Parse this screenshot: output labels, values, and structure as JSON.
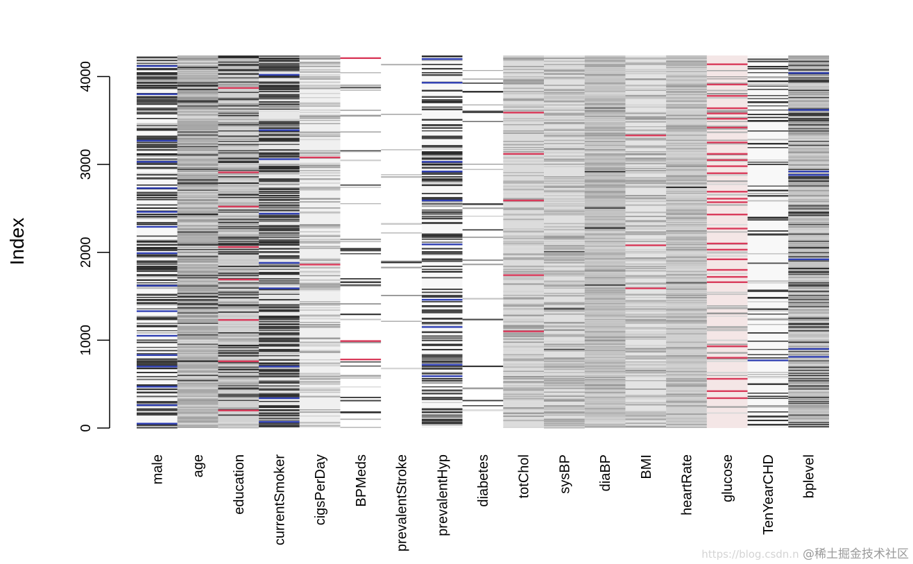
{
  "chart_data": {
    "type": "heatmap",
    "title": "",
    "xlabel": "",
    "ylabel": "Index",
    "ylim": [
      0,
      4240
    ],
    "y_ticks": [
      0,
      1000,
      2000,
      3000,
      4000
    ],
    "y_tick_labels": [
      "0",
      "1000",
      "2000",
      "3000",
      "4000"
    ],
    "columns": [
      {
        "name": "male",
        "base": "#f7f7f7",
        "dark_fraction": 0.44,
        "mid_fraction": 0.05,
        "missing_color": "#2f3fb3",
        "missing_rows": [
          50,
          260,
          470,
          700,
          830,
          1050,
          1330,
          1620,
          1990,
          2290,
          2460,
          2730,
          3030,
          3270,
          3800,
          4120
        ]
      },
      {
        "name": "age",
        "base": "#a8a8a8",
        "dark_fraction": 0.1,
        "mid_fraction": 0.6,
        "missing_color": "",
        "missing_rows": []
      },
      {
        "name": "education",
        "base": "#d2d2d2",
        "dark_fraction": 0.2,
        "mid_fraction": 0.4,
        "missing_color": "#d93a5a",
        "missing_rows": [
          200,
          760,
          1230,
          1690,
          2060,
          2520,
          2910,
          3870
        ]
      },
      {
        "name": "currentSmoker",
        "base": "#e8e8e8",
        "dark_fraction": 0.5,
        "mid_fraction": 0.05,
        "missing_color": "#2f3fb3",
        "missing_rows": [
          70,
          340,
          700,
          1590,
          1880,
          2440,
          3060,
          3390,
          4020
        ]
      },
      {
        "name": "cigsPerDay",
        "base": "#f0f0f0",
        "dark_fraction": 0.0,
        "mid_fraction": 0.3,
        "missing_color": "#d93a5a",
        "missing_rows": [
          1860,
          3080
        ]
      },
      {
        "name": "BPMeds",
        "base": "#ffffff",
        "dark_fraction": 0.03,
        "mid_fraction": 0.05,
        "missing_color": "#d93a5a",
        "missing_rows": [
          780,
          990,
          4210
        ]
      },
      {
        "name": "prevalentStroke",
        "base": "#ffffff",
        "dark_fraction": 0.004,
        "mid_fraction": 0.03,
        "missing_color": "",
        "missing_rows": []
      },
      {
        "name": "prevalentHyp",
        "base": "#f7f7f7",
        "dark_fraction": 0.32,
        "mid_fraction": 0.05,
        "missing_color": "#2f3fb3",
        "missing_rows": [
          590,
          720,
          1150,
          1460,
          2090,
          2590,
          2920,
          3030,
          3930,
          4200
        ]
      },
      {
        "name": "diabetes",
        "base": "#ffffff",
        "dark_fraction": 0.03,
        "mid_fraction": 0.02,
        "missing_color": "",
        "missing_rows": []
      },
      {
        "name": "totChol",
        "base": "#dcdcdc",
        "dark_fraction": 0.0,
        "mid_fraction": 0.4,
        "missing_color": "#d93a5a",
        "missing_rows": [
          1100,
          1740,
          2590,
          3120,
          3590
        ]
      },
      {
        "name": "sysBP",
        "base": "#e0e0e0",
        "dark_fraction": 0.01,
        "mid_fraction": 0.45,
        "missing_color": "",
        "missing_rows": []
      },
      {
        "name": "diaBP",
        "base": "#c4c4c4",
        "dark_fraction": 0.02,
        "mid_fraction": 0.6,
        "missing_color": "",
        "missing_rows": []
      },
      {
        "name": "BMI",
        "base": "#e4e4e4",
        "dark_fraction": 0.0,
        "mid_fraction": 0.4,
        "missing_color": "#d93a5a",
        "missing_rows": [
          1590,
          2080,
          3330
        ]
      },
      {
        "name": "heartRate",
        "base": "#d0d0d0",
        "dark_fraction": 0.01,
        "mid_fraction": 0.5,
        "missing_color": "",
        "missing_rows": []
      },
      {
        "name": "glucose",
        "base": "#f4e6e6",
        "dark_fraction": 0.0,
        "mid_fraction": 0.15,
        "missing_color": "#d93a5a",
        "missing_rows": [
          340,
          420,
          560,
          800,
          930,
          1660,
          1720,
          1800,
          1920,
          2030,
          2100,
          2270,
          2430,
          2570,
          2610,
          2690,
          2900,
          2980,
          3050,
          3120,
          3250,
          3420,
          3520,
          3580,
          3640,
          3780,
          3910,
          4140
        ]
      },
      {
        "name": "TenYearCHD",
        "base": "#f8f8f8",
        "dark_fraction": 0.14,
        "mid_fraction": 0.05,
        "missing_color": "#2f3fb3",
        "missing_rows": [
          770
        ]
      },
      {
        "name": "bplevel",
        "base": "#c6c6c6",
        "dark_fraction": 0.22,
        "mid_fraction": 0.5,
        "missing_color": "#2f3fb3",
        "missing_rows": [
          810,
          900,
          1920,
          2880,
          2920,
          3620,
          4040
        ]
      }
    ]
  },
  "watermark": {
    "faint": "https://blog.csdn.n",
    "label": "@稀土掘金技术社区"
  }
}
